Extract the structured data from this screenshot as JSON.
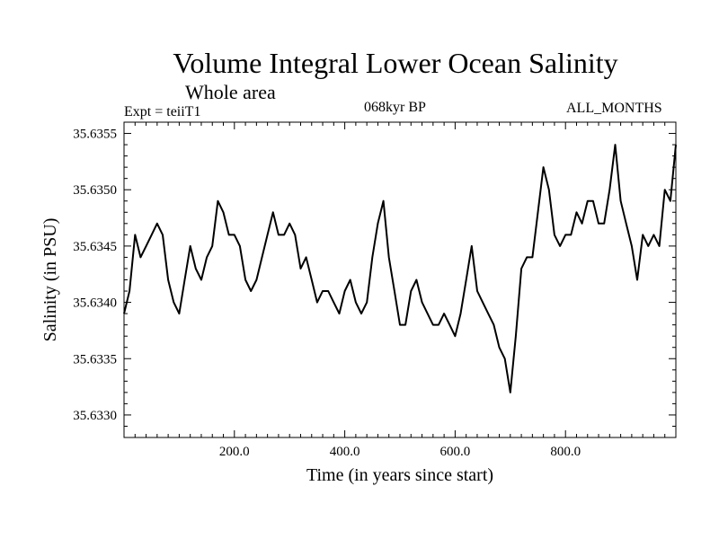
{
  "header": {
    "title": "Volume Integral Lower Ocean Salinity",
    "subtitle": "Whole area",
    "expt": "Expt = teiiT1",
    "period": "068kyr BP",
    "months": "ALL_MONTHS"
  },
  "chart_data": {
    "type": "line",
    "title": "Volume Integral Lower Ocean Salinity",
    "subtitle": "Whole area",
    "xlabel": "Time (in years since start)",
    "ylabel": "Salinity (in PSU)",
    "xlim": [
      0,
      1000
    ],
    "ylim": [
      35.6328,
      35.6356
    ],
    "xticks": [
      200,
      400,
      600,
      800
    ],
    "xtick_labels": [
      "200.0",
      "400.0",
      "600.0",
      "800.0"
    ],
    "yticks": [
      35.633,
      35.6335,
      35.634,
      35.6345,
      35.635,
      35.6355
    ],
    "ytick_labels": [
      "35.6330",
      "35.6335",
      "35.6340",
      "35.6345",
      "35.6350",
      "35.6355"
    ],
    "grid": false,
    "series": [
      {
        "x": [
          0,
          10,
          20,
          30,
          40,
          50,
          60,
          70,
          80,
          90,
          100,
          110,
          120,
          130,
          140,
          150,
          160,
          170,
          180,
          190,
          200,
          210,
          220,
          230,
          240,
          250,
          260,
          270,
          280,
          290,
          300,
          310,
          320,
          330,
          340,
          350,
          360,
          370,
          380,
          390,
          400,
          410,
          420,
          430,
          440,
          450,
          460,
          470,
          480,
          490,
          500,
          510,
          520,
          530,
          540,
          550,
          560,
          570,
          580,
          590,
          600,
          610,
          620,
          630,
          640,
          650,
          660,
          670,
          680,
          690,
          700,
          710,
          720,
          730,
          740,
          750,
          760,
          770,
          780,
          790,
          800,
          810,
          820,
          830,
          840,
          850,
          860,
          870,
          880,
          890,
          900,
          910,
          920,
          930,
          940,
          950,
          960,
          970,
          980,
          990,
          1000
        ],
        "y": [
          35.6339,
          35.6341,
          35.6346,
          35.6344,
          35.6345,
          35.6346,
          35.6347,
          35.6346,
          35.6342,
          35.634,
          35.6339,
          35.6342,
          35.6345,
          35.6343,
          35.6342,
          35.6344,
          35.6345,
          35.6349,
          35.6348,
          35.6346,
          35.6346,
          35.6345,
          35.6342,
          35.6341,
          35.6342,
          35.6344,
          35.6346,
          35.6348,
          35.6346,
          35.6346,
          35.6347,
          35.6346,
          35.6343,
          35.6344,
          35.6342,
          35.634,
          35.6341,
          35.6341,
          35.634,
          35.6339,
          35.6341,
          35.6342,
          35.634,
          35.6339,
          35.634,
          35.6344,
          35.6347,
          35.6349,
          35.6344,
          35.6341,
          35.6338,
          35.6338,
          35.6341,
          35.6342,
          35.634,
          35.6339,
          35.6338,
          35.6338,
          35.6339,
          35.6338,
          35.6337,
          35.6339,
          35.6342,
          35.6345,
          35.6341,
          35.634,
          35.6339,
          35.6338,
          35.6336,
          35.6335,
          35.6332,
          35.6337,
          35.6343,
          35.6344,
          35.6344,
          35.6348,
          35.6352,
          35.635,
          35.6346,
          35.6345,
          35.6346,
          35.6346,
          35.6348,
          35.6347,
          35.6349,
          35.6349,
          35.6347,
          35.6347,
          35.635,
          35.6354,
          35.6349,
          35.6347,
          35.6345,
          35.6342,
          35.6346,
          35.6345,
          35.6346,
          35.6345,
          35.635,
          35.6349,
          35.6354
        ]
      }
    ]
  }
}
